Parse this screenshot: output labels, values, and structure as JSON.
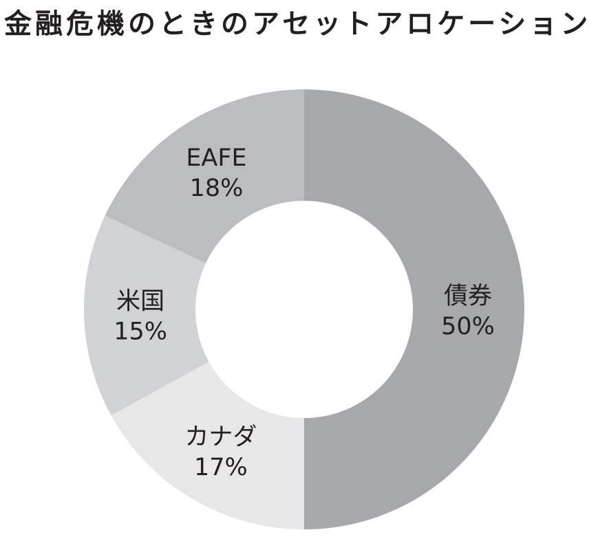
{
  "chart_data": {
    "type": "donut",
    "title": "金融危機のときのアセットアロケーション",
    "legend": "none",
    "slices": [
      {
        "label": "債券",
        "value": 50,
        "value_label": "50%",
        "color": "#a7a8ab"
      },
      {
        "label": "カナダ",
        "value": 17,
        "value_label": "17%",
        "color": "#e7e7e8"
      },
      {
        "label": "米国",
        "value": 15,
        "value_label": "15%",
        "color": "#d1d2d4"
      },
      {
        "label": "EAFE",
        "value": 18,
        "value_label": "18%",
        "color": "#bcbdc0"
      }
    ]
  }
}
